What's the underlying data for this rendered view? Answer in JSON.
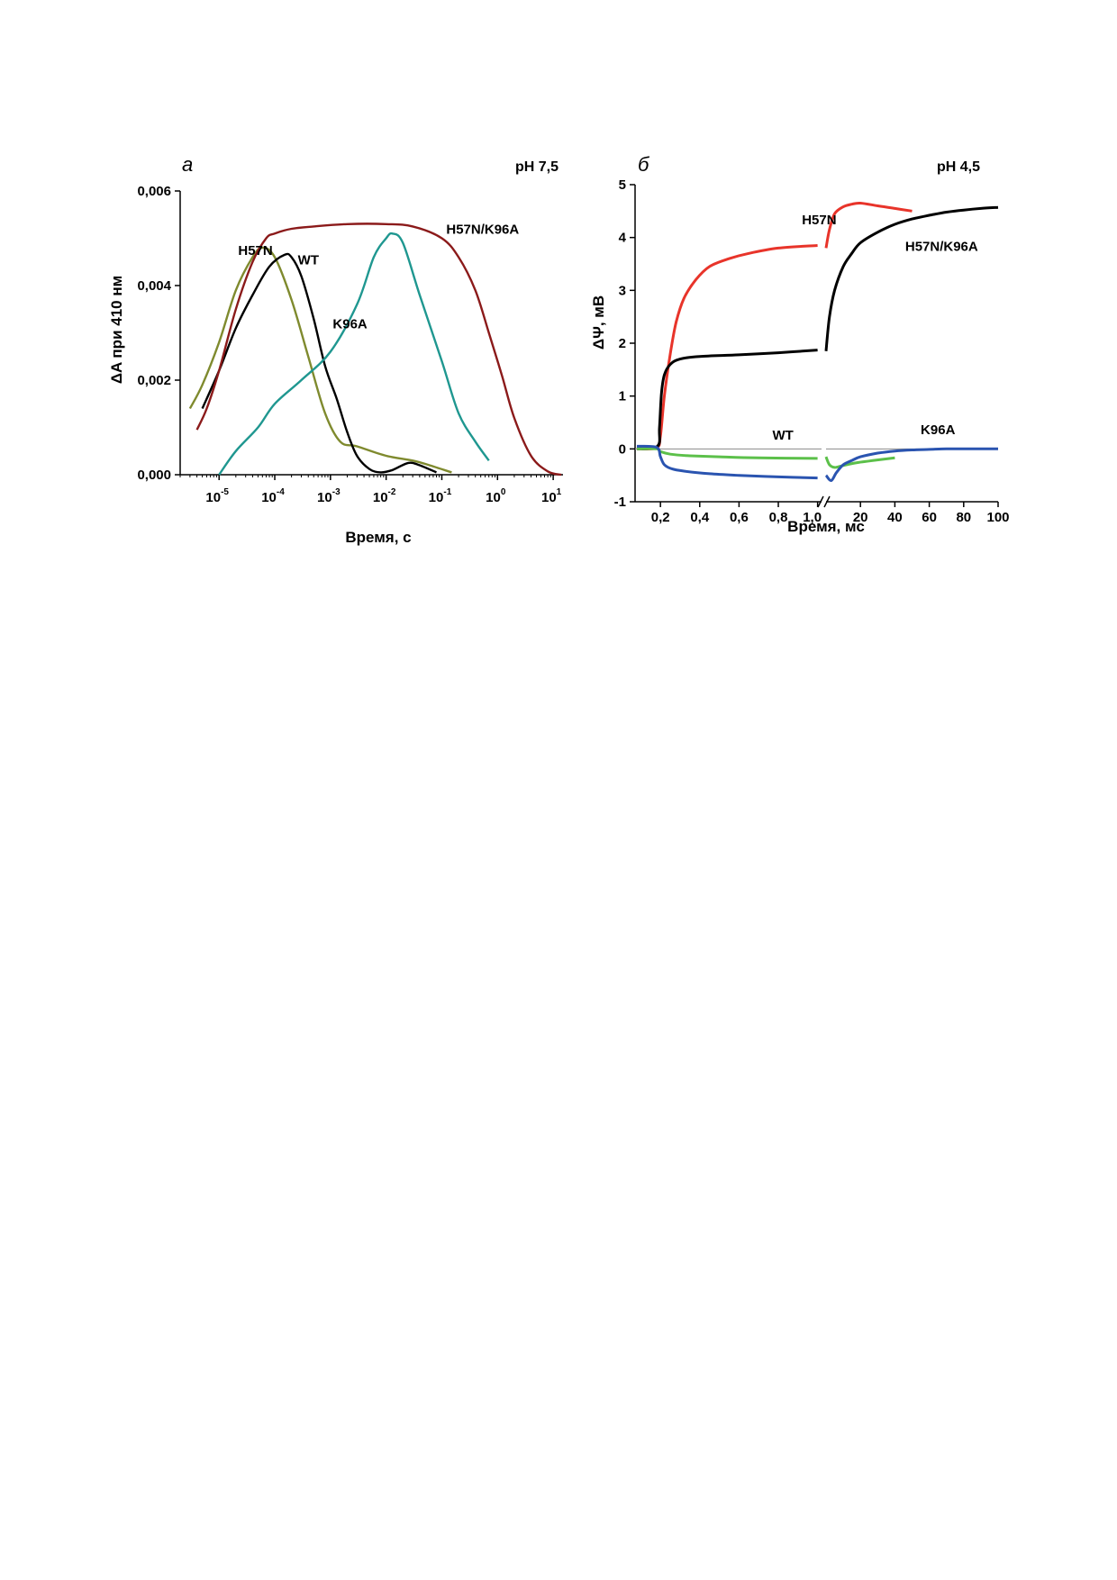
{
  "chart_data": [
    {
      "type": "line",
      "panel": "а",
      "title": "pH 7,5",
      "xlabel": "Время, с",
      "ylabel": "ΔA при 410 нм",
      "xscale": "log",
      "xlim": [
        2e-06,
        15
      ],
      "ylim": [
        0,
        0.006
      ],
      "xticks": [
        1e-05,
        0.0001,
        0.001,
        0.01,
        0.1,
        1,
        10
      ],
      "xtick_labels": [
        {
          "base": "10",
          "exp": "-5"
        },
        {
          "base": "10",
          "exp": "-4"
        },
        {
          "base": "10",
          "exp": "-3"
        },
        {
          "base": "10",
          "exp": "-2"
        },
        {
          "base": "10",
          "exp": "-1"
        },
        {
          "base": "10",
          "exp": "0"
        },
        {
          "base": "10",
          "exp": "1"
        }
      ],
      "yticks": [
        0,
        0.002,
        0.004,
        0.006
      ],
      "ytick_labels": [
        "0,000",
        "0,002",
        "0,004",
        "0,006"
      ],
      "grid": false,
      "series": [
        {
          "name": "H57N",
          "color": "#7f8a2e",
          "x": [
            3e-06,
            5e-06,
            1e-05,
            2e-05,
            4e-05,
            6e-05,
            0.0001,
            0.0002,
            0.0004,
            0.0008,
            0.0015,
            0.003,
            0.01,
            0.03,
            0.06,
            0.15
          ],
          "y": [
            0.0014,
            0.0019,
            0.0028,
            0.0039,
            0.0046,
            0.0048,
            0.0046,
            0.0037,
            0.0025,
            0.0013,
            0.0007,
            0.0006,
            0.0004,
            0.0003,
            0.0002,
            5e-05
          ]
        },
        {
          "name": "WT",
          "color": "#000000",
          "x": [
            5e-06,
            1e-05,
            2e-05,
            4e-05,
            8e-05,
            0.00015,
            0.0002,
            0.0003,
            0.0005,
            0.0008,
            0.0013,
            0.002,
            0.003,
            0.005,
            0.008,
            0.013,
            0.025,
            0.04,
            0.08
          ],
          "y": [
            0.0014,
            0.0022,
            0.0031,
            0.0038,
            0.0044,
            0.00465,
            0.0046,
            0.0042,
            0.0033,
            0.0023,
            0.0016,
            0.0009,
            0.0004,
            0.00012,
            5e-05,
            0.0001,
            0.00025,
            0.0002,
            5e-05
          ]
        },
        {
          "name": "K96A",
          "color": "#1f9790",
          "x": [
            1e-05,
            2e-05,
            5e-05,
            0.0001,
            0.0003,
            0.001,
            0.003,
            0.006,
            0.01,
            0.013,
            0.02,
            0.04,
            0.1,
            0.2,
            0.4,
            0.7
          ],
          "y": [
            0,
            0.0005,
            0.001,
            0.0015,
            0.002,
            0.0026,
            0.0036,
            0.0046,
            0.005,
            0.0051,
            0.0049,
            0.0038,
            0.0024,
            0.0013,
            0.0007,
            0.0003
          ]
        },
        {
          "name": "H57N/K96A",
          "color": "#8b1a1a",
          "x": [
            4e-06,
            6e-06,
            1e-05,
            2e-05,
            4e-05,
            7e-05,
            0.0001,
            0.0002,
            0.0005,
            0.002,
            0.01,
            0.03,
            0.1,
            0.2,
            0.4,
            0.7,
            1.2,
            2,
            4,
            8,
            14
          ],
          "y": [
            0.00095,
            0.0014,
            0.0022,
            0.0035,
            0.0045,
            0.005,
            0.0051,
            0.0052,
            0.00525,
            0.0053,
            0.0053,
            0.00525,
            0.005,
            0.0046,
            0.0039,
            0.003,
            0.0021,
            0.0012,
            0.0004,
            7e-05,
            0
          ]
        }
      ],
      "annotations": [
        {
          "text": "H57N",
          "x": 2.2e-05,
          "y": 0.00465
        },
        {
          "text": "WT",
          "x": 0.00026,
          "y": 0.00445
        },
        {
          "text": "K96A",
          "x": 0.0011,
          "y": 0.0031
        },
        {
          "text": "H57N/K96A",
          "x": 0.12,
          "y": 0.0051
        }
      ]
    },
    {
      "type": "line",
      "panel": "б",
      "title": "pH 4,5",
      "xlabel": "Время, мс",
      "ylabel": "ΔΨ, мВ",
      "xscale": "broken",
      "x_break": "between 1,0 and 10",
      "segment1_xlim": [
        0.08,
        1.02
      ],
      "segment2_xlim": [
        0,
        100
      ],
      "ylim": [
        -1,
        5
      ],
      "xticks_seg1": [
        0.2,
        0.4,
        0.6,
        0.8,
        1.0
      ],
      "xtick_labels_seg1": [
        "0,2",
        "0,4",
        "0,6",
        "0,8",
        "1,0"
      ],
      "xticks_seg2": [
        20,
        40,
        60,
        80,
        100
      ],
      "xtick_labels_seg2": [
        "20",
        "40",
        "60",
        "80",
        "100"
      ],
      "yticks": [
        -1,
        0,
        1,
        2,
        3,
        4,
        5
      ],
      "ytick_labels": [
        "-1",
        "0",
        "1",
        "2",
        "3",
        "4",
        "5"
      ],
      "zero_line": true,
      "grid": false,
      "series": [
        {
          "name": "H57N",
          "color": "#e8342a",
          "seg1": {
            "x": [
              0.08,
              0.18,
              0.2,
              0.22,
              0.25,
              0.28,
              0.32,
              0.38,
              0.45,
              0.55,
              0.65,
              0.8,
              1.0
            ],
            "y": [
              0.0,
              0.02,
              0.25,
              1.0,
              1.8,
              2.4,
              2.85,
              3.2,
              3.45,
              3.6,
              3.7,
              3.8,
              3.85
            ]
          },
          "seg2": {
            "x": [
              0,
              2,
              5,
              10,
              15,
              20,
              30,
              40,
              50
            ],
            "y": [
              3.8,
              4.15,
              4.45,
              4.58,
              4.63,
              4.65,
              4.6,
              4.55,
              4.5
            ]
          }
        },
        {
          "name": "H57N/K96A",
          "color": "#000000",
          "seg1": {
            "x": [
              0.08,
              0.185,
              0.195,
              0.205,
              0.22,
              0.25,
              0.3,
              0.4,
              0.6,
              0.8,
              1.0
            ],
            "y": [
              0.0,
              0.05,
              0.4,
              1.05,
              1.4,
              1.6,
              1.7,
              1.75,
              1.78,
              1.82,
              1.87
            ]
          },
          "seg2": {
            "x": [
              0,
              2,
              5,
              10,
              15,
              20,
              30,
              40,
              50,
              60,
              70,
              80,
              90,
              100
            ],
            "y": [
              1.85,
              2.5,
              3.0,
              3.45,
              3.7,
              3.9,
              4.1,
              4.25,
              4.35,
              4.42,
              4.48,
              4.52,
              4.55,
              4.57
            ]
          }
        },
        {
          "name": "WT",
          "color": "#5cc04a",
          "seg1": {
            "x": [
              0.08,
              0.18,
              0.2,
              0.25,
              0.35,
              0.5,
              0.7,
              1.0
            ],
            "y": [
              0.0,
              0.0,
              -0.05,
              -0.1,
              -0.13,
              -0.15,
              -0.17,
              -0.18
            ]
          },
          "seg2": {
            "x": [
              0,
              2,
              5,
              8,
              12,
              18,
              25,
              32,
              40
            ],
            "y": [
              -0.15,
              -0.3,
              -0.35,
              -0.33,
              -0.3,
              -0.26,
              -0.23,
              -0.2,
              -0.17
            ]
          }
        },
        {
          "name": "K96A",
          "color": "#2a54b0",
          "seg1": {
            "x": [
              0.08,
              0.18,
              0.2,
              0.22,
              0.26,
              0.32,
              0.45,
              0.6,
              0.8,
              1.0
            ],
            "y": [
              0.05,
              0.03,
              -0.15,
              -0.3,
              -0.38,
              -0.42,
              -0.47,
              -0.5,
              -0.53,
              -0.55
            ]
          },
          "seg2": {
            "x": [
              0,
              3,
              6,
              10,
              15,
              20,
              30,
              40,
              50,
              60,
              70,
              80,
              100
            ],
            "y": [
              -0.5,
              -0.6,
              -0.45,
              -0.3,
              -0.22,
              -0.15,
              -0.08,
              -0.04,
              -0.02,
              -0.01,
              0.0,
              0.0,
              0.0
            ]
          }
        }
      ],
      "annotations": [
        {
          "text": "H57N",
          "seg": 1,
          "x": 0.92,
          "y": 4.25
        },
        {
          "text": "H57N/K96A",
          "seg": 2,
          "x": 46,
          "y": 3.75
        },
        {
          "text": "WT",
          "seg": 1,
          "x": 0.77,
          "y": 0.18
        },
        {
          "text": "K96A",
          "seg": 2,
          "x": 55,
          "y": 0.28
        }
      ]
    }
  ]
}
